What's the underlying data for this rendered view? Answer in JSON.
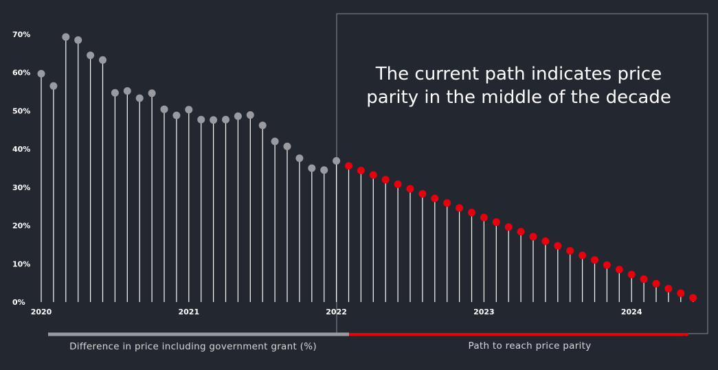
{
  "chart_data": {
    "type": "lollipop",
    "x_tick_labels": [
      "2020",
      "2021",
      "2022",
      "2023",
      "2024"
    ],
    "y_tick_labels": [
      "0%",
      "10%",
      "20%",
      "30%",
      "40%",
      "50%",
      "60%",
      "70%"
    ],
    "ylim": [
      0,
      70
    ],
    "grid": false,
    "series": [
      {
        "legend_label": "Difference in price including government grant (%)",
        "color": "#9a9ba1",
        "values": [
          59.7,
          56.5,
          69.3,
          68.5,
          64.5,
          63.3,
          54.7,
          55.2,
          53.3,
          54.6,
          50.4,
          48.8,
          50.3,
          47.7,
          47.6,
          47.7,
          48.6,
          48.9,
          46.2,
          42.0,
          40.7,
          37.6,
          35.0,
          34.5,
          36.9
        ]
      },
      {
        "legend_label": "Path to reach price parity",
        "color": "#e8000e",
        "values": [
          35.6,
          34.4,
          33.2,
          32.0,
          30.8,
          29.6,
          28.3,
          27.1,
          25.9,
          24.6,
          23.4,
          22.1,
          20.9,
          19.6,
          18.4,
          17.1,
          15.9,
          14.7,
          13.4,
          12.2,
          11.0,
          9.7,
          8.5,
          7.2,
          6.0,
          4.8,
          3.5,
          2.3,
          1.1
        ]
      }
    ],
    "annotation": {
      "lines": [
        "The current path indicates price",
        "parity in the middle of the decade"
      ]
    }
  },
  "colors": {
    "background": "#232730",
    "stem": "#ffffff",
    "frame": "#8a8c92"
  }
}
